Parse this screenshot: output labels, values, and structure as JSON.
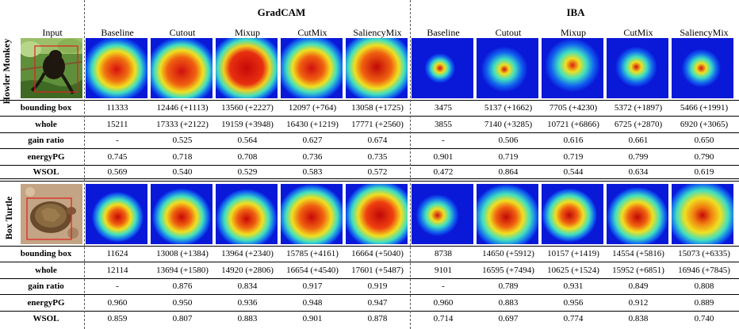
{
  "groups": {
    "left": "GradCAM",
    "right": "IBA"
  },
  "input_header": "Input",
  "methods": [
    "Baseline",
    "Cutout",
    "Mixup",
    "CutMix",
    "SaliencyMix"
  ],
  "metric_labels": [
    "bounding box",
    "whole",
    "gain ratio",
    "energyPG",
    "WSOL"
  ],
  "sections": [
    {
      "label": "Howler Monkey",
      "input_image": "howler-monkey-photo",
      "rows": [
        {
          "gradcam": [
            "11333",
            "12446 (+1113)",
            "13560 (+2227)",
            "12097 (+764)",
            "13058 (+1725)"
          ],
          "iba": [
            "3475",
            "5137 (+1662)",
            "7705 (+4230)",
            "5372 (+1897)",
            "5466 (+1991)"
          ]
        },
        {
          "gradcam": [
            "15211",
            "17333 (+2122)",
            "19159 (+3948)",
            "16430 (+1219)",
            "17771 (+2560)"
          ],
          "iba": [
            "3855",
            "7140 (+3285)",
            "10721 (+6866)",
            "6725 (+2870)",
            "6920 (+3065)"
          ]
        },
        {
          "gradcam": [
            "-",
            "0.525",
            "0.564",
            "0.627",
            "0.674"
          ],
          "iba": [
            "-",
            "0.506",
            "0.616",
            "0.661",
            "0.650"
          ]
        },
        {
          "gradcam": [
            "0.745",
            "0.718",
            "0.708",
            "0.736",
            "0.735"
          ],
          "iba": [
            "0.901",
            "0.719",
            "0.719",
            "0.799",
            "0.790"
          ]
        },
        {
          "gradcam": [
            "0.569",
            "0.540",
            "0.529",
            "0.583",
            "0.572"
          ],
          "iba": [
            "0.472",
            "0.864",
            "0.544",
            "0.634",
            "0.619"
          ]
        }
      ]
    },
    {
      "label": "Box Turtle",
      "input_image": "box-turtle-photo",
      "rows": [
        {
          "gradcam": [
            "11624",
            "13008 (+1384)",
            "13964 (+2340)",
            "15785 (+4161)",
            "16664 (+5040)"
          ],
          "iba": [
            "8738",
            "14650 (+5912)",
            "10157 (+1419)",
            "14554 (+5816)",
            "15073 (+6335)"
          ]
        },
        {
          "gradcam": [
            "12114",
            "13694 (+1580)",
            "14920 (+2806)",
            "16654 (+4540)",
            "17601 (+5487)"
          ],
          "iba": [
            "9101",
            "16595 (+7494)",
            "10625 (+1524)",
            "15952 (+6851)",
            "16946 (+7845)"
          ]
        },
        {
          "gradcam": [
            "-",
            "0.876",
            "0.834",
            "0.917",
            "0.919"
          ],
          "iba": [
            "-",
            "0.789",
            "0.931",
            "0.849",
            "0.808"
          ]
        },
        {
          "gradcam": [
            "0.960",
            "0.950",
            "0.936",
            "0.948",
            "0.947"
          ],
          "iba": [
            "0.960",
            "0.883",
            "0.956",
            "0.912",
            "0.889"
          ]
        },
        {
          "gradcam": [
            "0.859",
            "0.807",
            "0.883",
            "0.901",
            "0.878"
          ],
          "iba": [
            "0.714",
            "0.697",
            "0.774",
            "0.838",
            "0.740"
          ]
        }
      ]
    }
  ]
}
